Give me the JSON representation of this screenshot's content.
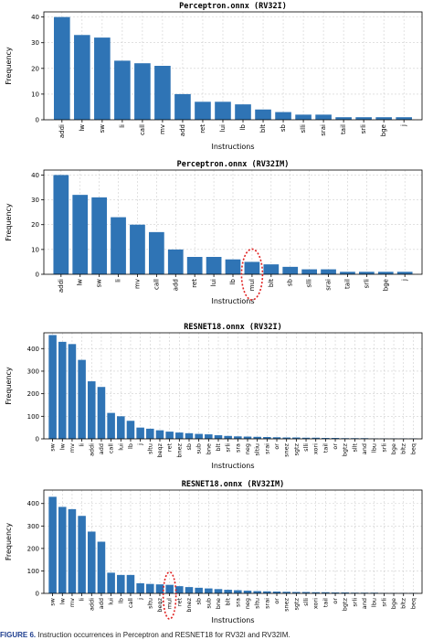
{
  "chart_data": [
    {
      "type": "bar",
      "title": "Perceptron.onnx (RV32I)",
      "xlabel": "Instructions",
      "ylabel": "Frequency",
      "ylim": [
        0,
        42
      ],
      "yticks": [
        0,
        10,
        20,
        30,
        40
      ],
      "grid": true,
      "color": "#2f74b5",
      "categories": [
        "addi",
        "lw",
        "sw",
        "li",
        "call",
        "mv",
        "add",
        "ret",
        "lui",
        "lb",
        "blt",
        "sb",
        "slli",
        "srai",
        "tail",
        "srli",
        "bge",
        "j"
      ],
      "values": [
        40,
        33,
        32,
        23,
        22,
        21,
        10,
        7,
        7,
        6,
        4,
        3,
        2,
        2,
        1,
        1,
        1,
        1
      ],
      "highlight": null
    },
    {
      "type": "bar",
      "title": "Perceptron.onnx (RV32IM)",
      "xlabel": "Instructions",
      "ylabel": "Frequency",
      "ylim": [
        0,
        42
      ],
      "yticks": [
        0,
        10,
        20,
        30,
        40
      ],
      "grid": true,
      "color": "#2f74b5",
      "categories": [
        "addi",
        "lw",
        "sw",
        "li",
        "mv",
        "call",
        "add",
        "ret",
        "lui",
        "lb",
        "mul",
        "blt",
        "sb",
        "slli",
        "srai",
        "tail",
        "srli",
        "bge",
        "j"
      ],
      "values": [
        40,
        32,
        31,
        23,
        20,
        17,
        10,
        7,
        7,
        6,
        5,
        4,
        3,
        2,
        2,
        1,
        1,
        1,
        1
      ],
      "highlight": "mul"
    },
    {
      "type": "bar",
      "title": "RESNET18.onnx (RV32I)",
      "xlabel": "Instructions",
      "ylabel": "Frequency",
      "ylim": [
        0,
        470
      ],
      "yticks": [
        0,
        100,
        200,
        300,
        400
      ],
      "grid": true,
      "color": "#2f74b5",
      "categories": [
        "sw",
        "lw",
        "mv",
        "li",
        "addi",
        "add",
        "call",
        "lui",
        "lb",
        "j",
        "sltu",
        "beqz",
        "ret",
        "bnez",
        "sb",
        "sub",
        "bne",
        "blt",
        "srli",
        "sra",
        "neg",
        "sltiu",
        "srai",
        "or",
        "snez",
        "sgtz",
        "slli",
        "xori",
        "tail",
        "or",
        "bgtz",
        "sllt",
        "and",
        "lbu",
        "srli",
        "bge",
        "bltz",
        "beq"
      ],
      "values": [
        460,
        430,
        420,
        350,
        255,
        230,
        115,
        100,
        80,
        50,
        45,
        38,
        32,
        28,
        25,
        22,
        20,
        16,
        13,
        11,
        10,
        9,
        8,
        7,
        6,
        6,
        5,
        5,
        4,
        4,
        3,
        3,
        3,
        2,
        2,
        2,
        2,
        2
      ],
      "highlight": null
    },
    {
      "type": "bar",
      "title": "RESNET18.onnx (RV32IM)",
      "xlabel": "Instructions",
      "ylabel": "Frequency",
      "ylim": [
        0,
        460
      ],
      "yticks": [
        0,
        100,
        200,
        300,
        400
      ],
      "grid": true,
      "color": "#2f74b5",
      "categories": [
        "sw",
        "lw",
        "mv",
        "li",
        "addi",
        "add",
        "lui",
        "lb",
        "call",
        "j",
        "sltu",
        "beqz",
        "mul",
        "ret",
        "bnez",
        "sb",
        "sub",
        "bne",
        "blt",
        "sra",
        "neg",
        "sltu",
        "srai",
        "or",
        "snez",
        "sgtz",
        "slli",
        "xori",
        "tail",
        "or",
        "bgtz",
        "srli",
        "and",
        "lbu",
        "srli",
        "bge",
        "bltz",
        "beq"
      ],
      "values": [
        430,
        385,
        375,
        345,
        275,
        230,
        92,
        82,
        82,
        45,
        42,
        40,
        38,
        32,
        28,
        25,
        22,
        19,
        16,
        14,
        12,
        10,
        9,
        8,
        7,
        6,
        6,
        5,
        5,
        4,
        4,
        3,
        3,
        3,
        2,
        2,
        2,
        2
      ],
      "highlight": "mul"
    }
  ],
  "caption": {
    "label": "FIGURE 6.",
    "text": "Instruction occurrences in Perceptron and RESNET18 for RV32I and RV32IM."
  }
}
